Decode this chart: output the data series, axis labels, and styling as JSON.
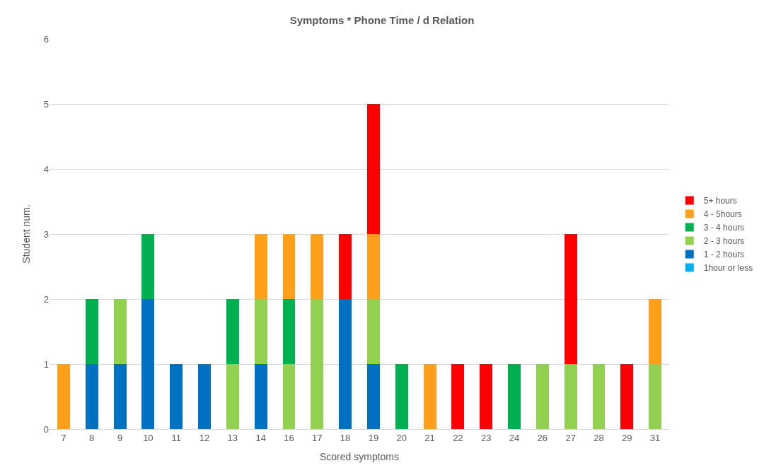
{
  "chart_data": {
    "type": "bar",
    "title": "Symptoms * Phone Time / d Relation",
    "xlabel": "Scored symptoms",
    "ylabel": "Student num.",
    "categories": [
      "7",
      "8",
      "9",
      "10",
      "11",
      "12",
      "13",
      "14",
      "16",
      "17",
      "18",
      "19",
      "20",
      "21",
      "22",
      "23",
      "24",
      "26",
      "27",
      "28",
      "29",
      "31"
    ],
    "stacked": true,
    "ylim": [
      0,
      6
    ],
    "yticks": [
      0,
      1,
      2,
      3,
      4,
      5,
      6
    ],
    "grid": "y",
    "legend": "right",
    "series": [
      {
        "name": "1hour or less",
        "color": "#00b0f0",
        "values": [
          0,
          0,
          0,
          0,
          0,
          0,
          0,
          0,
          0,
          0,
          0,
          0,
          0,
          0,
          0,
          0,
          0,
          0,
          0,
          0,
          0,
          0
        ]
      },
      {
        "name": "1 - 2 hours",
        "color": "#0070c0",
        "values": [
          0,
          1,
          1,
          2,
          1,
          1,
          0,
          1,
          0,
          0,
          2,
          1,
          0,
          0,
          0,
          0,
          0,
          0,
          0,
          0,
          0,
          0
        ]
      },
      {
        "name": "2 - 3 hours",
        "color": "#92d050",
        "values": [
          0,
          0,
          1,
          0,
          0,
          0,
          1,
          1,
          1,
          2,
          0,
          1,
          0,
          0,
          0,
          0,
          0,
          1,
          1,
          1,
          0,
          1
        ]
      },
      {
        "name": "3 - 4 hours",
        "color": "#00b050",
        "values": [
          0,
          1,
          0,
          1,
          0,
          0,
          1,
          0,
          1,
          0,
          0,
          0,
          1,
          0,
          0,
          0,
          1,
          0,
          0,
          0,
          0,
          0
        ]
      },
      {
        "name": "4 - 5hours",
        "color": "#ff9f1a",
        "values": [
          1,
          0,
          0,
          0,
          0,
          0,
          0,
          1,
          1,
          1,
          0,
          1,
          0,
          1,
          0,
          0,
          0,
          0,
          0,
          0,
          0,
          1
        ]
      },
      {
        "name": "5+ hours",
        "color": "#ff0000",
        "values": [
          0,
          0,
          0,
          0,
          0,
          0,
          0,
          0,
          0,
          0,
          1,
          2,
          0,
          0,
          1,
          1,
          0,
          0,
          2,
          0,
          1,
          0
        ]
      }
    ]
  }
}
